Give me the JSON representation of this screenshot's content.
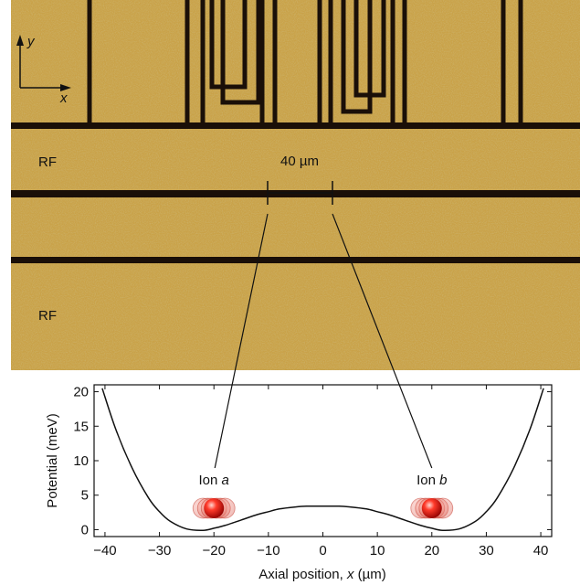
{
  "micrograph": {
    "axis_y": "y",
    "axis_x": "x",
    "rf_top": "RF",
    "rf_bottom": "RF",
    "scale_bar": "40 µm",
    "colors": {
      "gold": "#c9a248",
      "trench": "#1a0f08"
    }
  },
  "ions": [
    {
      "name": "Ion",
      "letter": "a",
      "x": -20
    },
    {
      "name": "Ion",
      "letter": "b",
      "x": 20
    }
  ],
  "chart_data": {
    "type": "line",
    "title": "",
    "xlabel_prefix": "Axial position, ",
    "xlabel_var": "x",
    "xlabel_unit": " (µm)",
    "ylabel": "Potential (meV)",
    "xlim": [
      -42,
      42
    ],
    "ylim": [
      -1,
      21
    ],
    "xticks": [
      -40,
      -30,
      -20,
      -10,
      0,
      10,
      20,
      30,
      40
    ],
    "yticks": [
      0,
      5,
      10,
      15,
      20
    ],
    "grid": false,
    "series": [
      {
        "x": [
          -40.5,
          -38,
          -35,
          -32,
          -30,
          -28,
          -25,
          -22,
          -20,
          -18,
          -15,
          -12,
          -10,
          -8,
          -5,
          -3,
          0,
          3,
          5,
          8,
          10,
          12,
          15,
          18,
          20,
          22,
          25,
          28,
          30,
          32,
          35,
          38,
          40.5
        ],
        "y": [
          20.5,
          14.5,
          8.9,
          4.6,
          2.6,
          1.2,
          0.1,
          -0.1,
          0.2,
          0.6,
          1.4,
          2.2,
          2.6,
          3.0,
          3.3,
          3.4,
          3.4,
          3.4,
          3.3,
          3.0,
          2.6,
          2.2,
          1.4,
          0.6,
          0.2,
          -0.1,
          0.1,
          1.2,
          2.6,
          4.6,
          8.9,
          14.5,
          20.5
        ]
      }
    ]
  }
}
